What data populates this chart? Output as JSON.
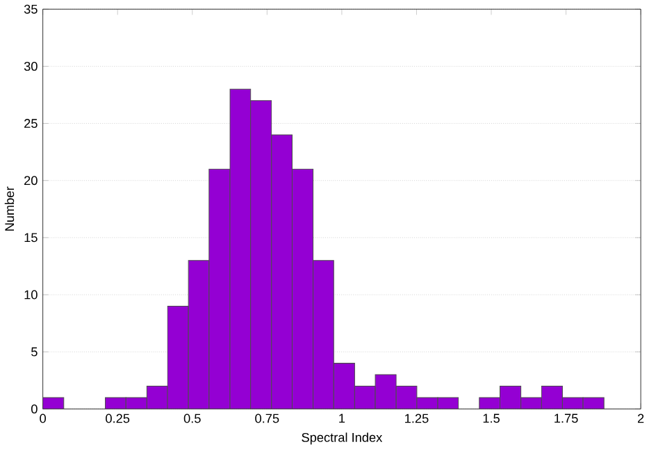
{
  "chart_data": {
    "type": "histogram",
    "xlabel": "Spectral Index",
    "ylabel": "Number",
    "bins": [
      0,
      0.07,
      0.139,
      0.209,
      0.278,
      0.348,
      0.417,
      0.487,
      0.556,
      0.626,
      0.695,
      0.765,
      0.834,
      0.904,
      0.973,
      1.043,
      1.112,
      1.182,
      1.251,
      1.321,
      1.39,
      1.46,
      1.529,
      1.599,
      1.668,
      1.738,
      1.807,
      1.877
    ],
    "values": [
      1,
      0,
      0,
      1,
      1,
      2,
      9,
      13,
      21,
      28,
      27,
      24,
      21,
      13,
      4,
      2,
      3,
      2,
      1,
      1,
      0,
      1,
      2,
      1,
      2,
      1,
      1
    ],
    "color": "#9400d3",
    "xlim": [
      0,
      2
    ],
    "ylim": [
      0,
      35
    ],
    "xticks": [
      0,
      0.25,
      0.5,
      0.75,
      1,
      1.25,
      1.5,
      1.75,
      2
    ],
    "yticks": [
      0,
      5,
      10,
      15,
      20,
      25,
      30,
      35
    ],
    "grid": "y"
  }
}
